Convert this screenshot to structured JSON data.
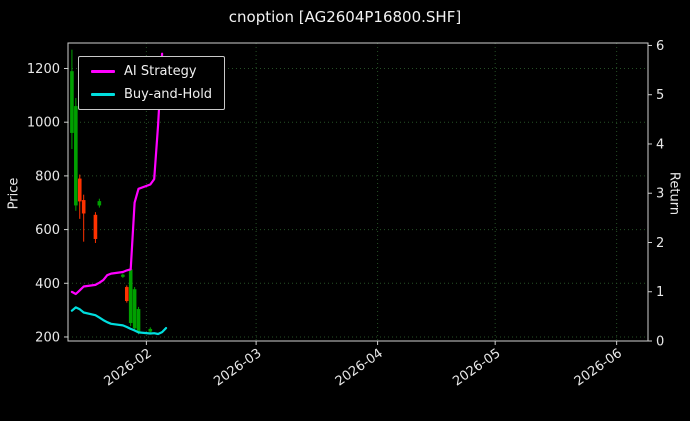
{
  "title": "cnoption [AG2604P16800.SHF]",
  "chart_data": {
    "type": "line",
    "subtype": "candlestick-with-lines",
    "title": "cnoption [AG2604P16800.SHF]",
    "ylabel_left": "Price",
    "ylabel_right": "Return",
    "ylim_left": [
      185,
      1295
    ],
    "ylim_right": [
      0,
      6.05
    ],
    "yticks_left": [
      200,
      400,
      600,
      800,
      1000,
      1200
    ],
    "yticks_right": [
      0,
      1,
      2,
      3,
      4,
      5,
      6
    ],
    "x_domain": [
      "2026-01-12",
      "2026-06-09"
    ],
    "x_ticks": [
      {
        "date": "2026-02-01",
        "label": "2026-02"
      },
      {
        "date": "2026-03-01",
        "label": "2026-03"
      },
      {
        "date": "2026-04-01",
        "label": "2026-04"
      },
      {
        "date": "2026-05-01",
        "label": "2026-05"
      },
      {
        "date": "2026-06-01",
        "label": "2026-06"
      }
    ],
    "grid": {
      "show": true,
      "color": "#265026",
      "style": "dotted"
    },
    "candle_colors": {
      "up": "#00a000",
      "down": "#ff3200"
    },
    "candles": [
      {
        "date": "2026-01-13",
        "open": 960,
        "high": 1270,
        "low": 900,
        "close": 1190
      },
      {
        "date": "2026-01-14",
        "open": 690,
        "high": 1090,
        "low": 670,
        "close": 1060
      },
      {
        "date": "2026-01-15",
        "open": 790,
        "high": 805,
        "low": 640,
        "close": 705
      },
      {
        "date": "2026-01-16",
        "open": 710,
        "high": 730,
        "low": 555,
        "close": 660
      },
      {
        "date": "2026-01-19",
        "open": 655,
        "high": 665,
        "low": 550,
        "close": 565
      },
      {
        "date": "2026-01-20",
        "open": 690,
        "high": 715,
        "low": 682,
        "close": 706
      },
      {
        "date": "2026-01-26",
        "open": 424,
        "high": 436,
        "low": 420,
        "close": 432
      },
      {
        "date": "2026-01-27",
        "open": 386,
        "high": 392,
        "low": 328,
        "close": 334
      },
      {
        "date": "2026-01-28",
        "open": 252,
        "high": 462,
        "low": 240,
        "close": 452
      },
      {
        "date": "2026-01-29",
        "open": 232,
        "high": 386,
        "low": 224,
        "close": 378
      },
      {
        "date": "2026-01-30",
        "open": 216,
        "high": 312,
        "low": 210,
        "close": 304
      },
      {
        "date": "2026-02-02",
        "open": 220,
        "high": 236,
        "low": 212,
        "close": 230
      }
    ],
    "series": [
      {
        "name": "AI Strategy",
        "color": "#ff00ff",
        "axis": "left",
        "points": [
          [
            "2026-01-13",
            368
          ],
          [
            "2026-01-14",
            360
          ],
          [
            "2026-01-15",
            374
          ],
          [
            "2026-01-16",
            388
          ],
          [
            "2026-01-19",
            394
          ],
          [
            "2026-01-20",
            402
          ],
          [
            "2026-01-21",
            412
          ],
          [
            "2026-01-22",
            430
          ],
          [
            "2026-01-23",
            436
          ],
          [
            "2026-01-26",
            442
          ],
          [
            "2026-01-27",
            448
          ],
          [
            "2026-01-28",
            452
          ],
          [
            "2026-01-29",
            700
          ],
          [
            "2026-01-30",
            752
          ],
          [
            "2026-02-02",
            768
          ],
          [
            "2026-02-03",
            788
          ],
          [
            "2026-02-04",
            990
          ],
          [
            "2026-02-05",
            1255
          ]
        ]
      },
      {
        "name": "Buy-and-Hold",
        "color": "#00dede",
        "axis": "left",
        "points": [
          [
            "2026-01-13",
            298
          ],
          [
            "2026-01-14",
            310
          ],
          [
            "2026-01-15",
            303
          ],
          [
            "2026-01-16",
            291
          ],
          [
            "2026-01-19",
            281
          ],
          [
            "2026-01-20",
            272
          ],
          [
            "2026-01-21",
            263
          ],
          [
            "2026-01-22",
            255
          ],
          [
            "2026-01-23",
            249
          ],
          [
            "2026-01-26",
            243
          ],
          [
            "2026-01-27",
            237
          ],
          [
            "2026-01-28",
            230
          ],
          [
            "2026-01-29",
            224
          ],
          [
            "2026-01-30",
            217
          ],
          [
            "2026-02-02",
            213
          ],
          [
            "2026-02-03",
            214
          ],
          [
            "2026-02-04",
            211
          ],
          [
            "2026-02-05",
            218
          ],
          [
            "2026-02-06",
            233
          ]
        ]
      }
    ]
  }
}
